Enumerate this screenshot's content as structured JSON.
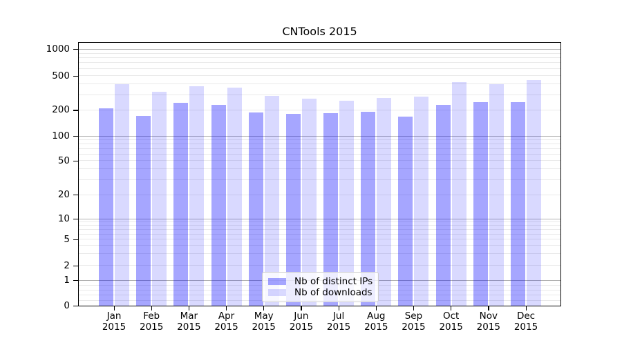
{
  "chart_data": {
    "type": "bar",
    "title": "CNTools 2015",
    "categories": [
      {
        "month": "Jan",
        "year": "2015"
      },
      {
        "month": "Feb",
        "year": "2015"
      },
      {
        "month": "Mar",
        "year": "2015"
      },
      {
        "month": "Apr",
        "year": "2015"
      },
      {
        "month": "May",
        "year": "2015"
      },
      {
        "month": "Jun",
        "year": "2015"
      },
      {
        "month": "Jul",
        "year": "2015"
      },
      {
        "month": "Aug",
        "year": "2015"
      },
      {
        "month": "Sep",
        "year": "2015"
      },
      {
        "month": "Oct",
        "year": "2015"
      },
      {
        "month": "Nov",
        "year": "2015"
      },
      {
        "month": "Dec",
        "year": "2015"
      }
    ],
    "series": [
      {
        "name": "Nb of distinct IPs",
        "color": "rgba(0,0,255,0.35)",
        "values": [
          211,
          172,
          245,
          233,
          188,
          182,
          185,
          192,
          168,
          232,
          248,
          247
        ]
      },
      {
        "name": "Nb of downloads",
        "color": "rgba(0,0,255,0.15)",
        "values": [
          403,
          326,
          380,
          368,
          292,
          274,
          258,
          276,
          287,
          424,
          399,
          445
        ]
      }
    ],
    "yscale": "symlog",
    "ylim": [
      0,
      1200
    ],
    "yticks": [
      0,
      1,
      2,
      5,
      10,
      20,
      50,
      100,
      200,
      500,
      1000
    ],
    "ytick_labels": [
      "0",
      "1",
      "2",
      "5",
      "10",
      "20",
      "50",
      "100",
      "200",
      "500",
      "1000"
    ],
    "grid": true,
    "legend_position": "lower center",
    "colors": {
      "major_grid": "#b0b0b0",
      "minor_grid": "#e9e9e9",
      "spine": "#000000",
      "text": "#000000",
      "legend_background": "rgba(255,255,255,0.8)",
      "legend_border": "#cccccc"
    }
  }
}
